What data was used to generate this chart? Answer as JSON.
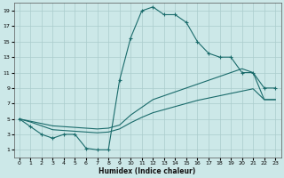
{
  "xlabel": "Humidex (Indice chaleur)",
  "bg_color": "#cce8e8",
  "grid_color": "#aacccc",
  "line_color": "#1a6b6b",
  "xlim": [
    -0.5,
    23.5
  ],
  "ylim": [
    0,
    20
  ],
  "xticks": [
    0,
    1,
    2,
    3,
    4,
    5,
    6,
    7,
    8,
    9,
    10,
    11,
    12,
    13,
    14,
    15,
    16,
    17,
    18,
    19,
    20,
    21,
    22,
    23
  ],
  "yticks": [
    1,
    3,
    5,
    7,
    9,
    11,
    13,
    15,
    17,
    19
  ],
  "line1_x": [
    0,
    1,
    2,
    3,
    4,
    5,
    6,
    7,
    8,
    9,
    10,
    11,
    12,
    13,
    14,
    15,
    16,
    17,
    18,
    19,
    20,
    21,
    22,
    23
  ],
  "line1_y": [
    5,
    4,
    3,
    2.5,
    3,
    3,
    1.2,
    1,
    1,
    10,
    15.5,
    19,
    19.5,
    18.5,
    18.5,
    17.5,
    15,
    13.5,
    13,
    13,
    11,
    11,
    9,
    9
  ],
  "line2_x": [
    0,
    1,
    2,
    3,
    4,
    5,
    6,
    7,
    8,
    9,
    10,
    11,
    12,
    13,
    14,
    15,
    16,
    17,
    18,
    19,
    20,
    21,
    22,
    23
  ],
  "line2_y": [
    5,
    4.7,
    4.4,
    4.1,
    4.0,
    3.9,
    3.8,
    3.7,
    3.8,
    4.2,
    5.5,
    6.5,
    7.5,
    8.0,
    8.5,
    9.0,
    9.5,
    10.0,
    10.5,
    11.0,
    11.5,
    11,
    7.5,
    7.5
  ],
  "line3_x": [
    0,
    1,
    2,
    3,
    4,
    5,
    6,
    7,
    8,
    9,
    10,
    11,
    12,
    13,
    14,
    15,
    16,
    17,
    18,
    19,
    20,
    21,
    22,
    23
  ],
  "line3_y": [
    5,
    4.6,
    4.1,
    3.6,
    3.5,
    3.4,
    3.3,
    3.2,
    3.3,
    3.7,
    4.5,
    5.2,
    5.8,
    6.2,
    6.6,
    7.0,
    7.4,
    7.7,
    8.0,
    8.3,
    8.6,
    8.9,
    7.5,
    7.5
  ]
}
